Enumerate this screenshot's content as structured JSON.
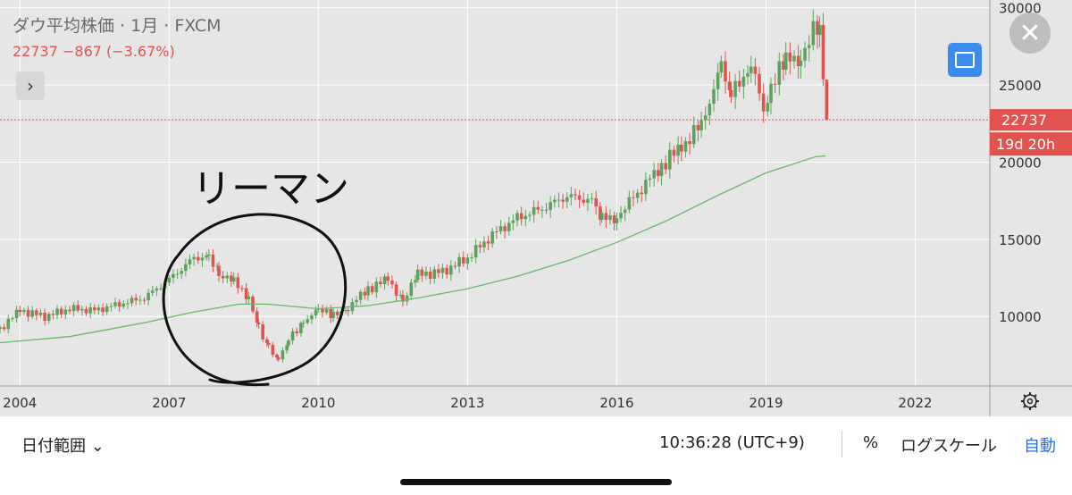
{
  "header": {
    "title": "ダウ平均株価 · 1月 · FXCM",
    "quote": "22737  −867 (−3.67%)"
  },
  "price_tag": "22737",
  "countdown_tag": "19d 20h",
  "annotation": "リーマン",
  "bottom_bar": {
    "date_range": "日付範囲 ⌄",
    "clock": "10:36:28 (UTC+9)",
    "percent": "%",
    "log_scale": "ログスケール",
    "auto": "自動"
  },
  "icons": {
    "close": "close-icon",
    "expand": "chevron-right-icon",
    "screenshot": "screenshot-icon",
    "settings": "gear-icon"
  },
  "colors": {
    "up": "#5aa45a",
    "down": "#e0534f",
    "ma": "#6ab76a",
    "background": "#e6e6e6",
    "accent": "#3c8cf0"
  },
  "chart_data": {
    "type": "candlestick",
    "title": "ダウ平均株価",
    "interval": "1月",
    "source": "FXCM",
    "x_ticks": [
      "2004",
      "2007",
      "2010",
      "2013",
      "2016",
      "2019",
      "2022"
    ],
    "y_ticks": [
      "10000",
      "15000",
      "20000",
      "25000",
      "30000"
    ],
    "xlim": [
      2003.6,
      2023.5
    ],
    "ylim": [
      5500,
      30500
    ],
    "last_price": 22737,
    "series": [
      {
        "name": "close",
        "points": [
          [
            2003.6,
            9200
          ],
          [
            2004.0,
            10400
          ],
          [
            2004.5,
            10000
          ],
          [
            2005.0,
            10500
          ],
          [
            2005.5,
            10400
          ],
          [
            2006.0,
            10800
          ],
          [
            2006.5,
            11200
          ],
          [
            2007.0,
            12400
          ],
          [
            2007.5,
            13800
          ],
          [
            2007.8,
            13900
          ],
          [
            2008.0,
            12700
          ],
          [
            2008.3,
            12200
          ],
          [
            2008.6,
            11300
          ],
          [
            2008.8,
            9300
          ],
          [
            2009.0,
            8000
          ],
          [
            2009.2,
            7200
          ],
          [
            2009.4,
            8500
          ],
          [
            2009.7,
            9700
          ],
          [
            2010.0,
            10400
          ],
          [
            2010.3,
            10100
          ],
          [
            2010.6,
            10600
          ],
          [
            2011.0,
            11800
          ],
          [
            2011.4,
            12400
          ],
          [
            2011.7,
            11000
          ],
          [
            2012.0,
            12700
          ],
          [
            2012.5,
            12900
          ],
          [
            2013.0,
            13800
          ],
          [
            2013.5,
            15300
          ],
          [
            2014.0,
            16400
          ],
          [
            2014.5,
            17000
          ],
          [
            2015.0,
            17800
          ],
          [
            2015.5,
            17500
          ],
          [
            2015.7,
            16300
          ],
          [
            2016.0,
            16500
          ],
          [
            2016.5,
            18300
          ],
          [
            2016.9,
            19800
          ],
          [
            2017.3,
            21000
          ],
          [
            2017.7,
            22400
          ],
          [
            2017.95,
            24800
          ],
          [
            2018.1,
            26000
          ],
          [
            2018.3,
            24300
          ],
          [
            2018.7,
            26400
          ],
          [
            2018.95,
            23300
          ],
          [
            2019.1,
            25000
          ],
          [
            2019.4,
            26500
          ],
          [
            2019.7,
            26900
          ],
          [
            2019.95,
            28500
          ],
          [
            2020.08,
            28300
          ],
          [
            2020.15,
            25400
          ],
          [
            2020.22,
            22737
          ]
        ]
      },
      {
        "name": "moving-average",
        "points": [
          [
            2003.6,
            8300
          ],
          [
            2005.0,
            8700
          ],
          [
            2006.5,
            9600
          ],
          [
            2007.5,
            10300
          ],
          [
            2008.4,
            10800
          ],
          [
            2009.0,
            10800
          ],
          [
            2010.0,
            10500
          ],
          [
            2011.0,
            10700
          ],
          [
            2012.0,
            11200
          ],
          [
            2013.0,
            11800
          ],
          [
            2014.0,
            12600
          ],
          [
            2015.0,
            13600
          ],
          [
            2016.0,
            14800
          ],
          [
            2017.0,
            16200
          ],
          [
            2018.0,
            17800
          ],
          [
            2019.0,
            19300
          ],
          [
            2020.0,
            20350
          ],
          [
            2020.2,
            20400
          ]
        ]
      }
    ]
  }
}
